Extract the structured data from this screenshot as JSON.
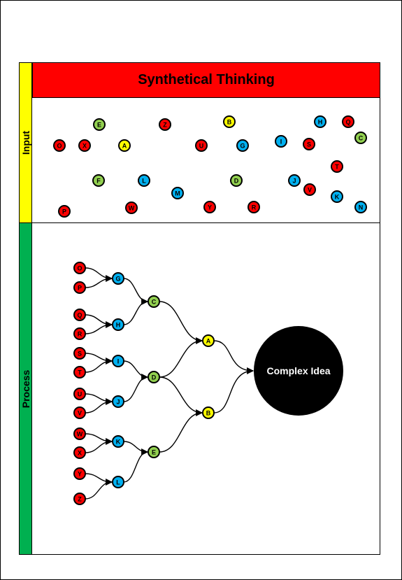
{
  "title": "Synthetical Thinking",
  "sections": {
    "input": "Input",
    "process": "Process"
  },
  "result_label": "Complex Idea",
  "colors": {
    "red": "#ff0000",
    "green": "#92d050",
    "blue": "#00b0f0",
    "yellow": "#ffff00",
    "black": "#000000"
  },
  "input_nodes": [
    {
      "label": "E",
      "color": "green"
    },
    {
      "label": "Z",
      "color": "red"
    },
    {
      "label": "B",
      "color": "yellow"
    },
    {
      "label": "H",
      "color": "blue"
    },
    {
      "label": "Q",
      "color": "red"
    },
    {
      "label": "C",
      "color": "green"
    },
    {
      "label": "O",
      "color": "red"
    },
    {
      "label": "X",
      "color": "red"
    },
    {
      "label": "A",
      "color": "yellow"
    },
    {
      "label": "U",
      "color": "red"
    },
    {
      "label": "G",
      "color": "blue"
    },
    {
      "label": "I",
      "color": "blue"
    },
    {
      "label": "S",
      "color": "red"
    },
    {
      "label": "T",
      "color": "red"
    },
    {
      "label": "F",
      "color": "green"
    },
    {
      "label": "L",
      "color": "blue"
    },
    {
      "label": "M",
      "color": "blue"
    },
    {
      "label": "D",
      "color": "green"
    },
    {
      "label": "J",
      "color": "blue"
    },
    {
      "label": "V",
      "color": "red"
    },
    {
      "label": "K",
      "color": "blue"
    },
    {
      "label": "P",
      "color": "red"
    },
    {
      "label": "W",
      "color": "red"
    },
    {
      "label": "Y",
      "color": "red"
    },
    {
      "label": "R",
      "color": "red"
    },
    {
      "label": "N",
      "color": "blue"
    }
  ],
  "process": {
    "level1": [
      {
        "label": "O",
        "color": "red"
      },
      {
        "label": "P",
        "color": "red"
      },
      {
        "label": "Q",
        "color": "red"
      },
      {
        "label": "R",
        "color": "red"
      },
      {
        "label": "S",
        "color": "red"
      },
      {
        "label": "T",
        "color": "red"
      },
      {
        "label": "U",
        "color": "red"
      },
      {
        "label": "V",
        "color": "red"
      },
      {
        "label": "W",
        "color": "red"
      },
      {
        "label": "X",
        "color": "red"
      },
      {
        "label": "Y",
        "color": "red"
      },
      {
        "label": "Z",
        "color": "red"
      }
    ],
    "level2": [
      {
        "label": "G",
        "color": "blue"
      },
      {
        "label": "H",
        "color": "blue"
      },
      {
        "label": "I",
        "color": "blue"
      },
      {
        "label": "J",
        "color": "blue"
      },
      {
        "label": "K",
        "color": "blue"
      },
      {
        "label": "L",
        "color": "blue"
      }
    ],
    "level3": [
      {
        "label": "C",
        "color": "green"
      },
      {
        "label": "D",
        "color": "green"
      },
      {
        "label": "E",
        "color": "green"
      }
    ],
    "level4": [
      {
        "label": "A",
        "color": "yellow"
      },
      {
        "label": "B",
        "color": "yellow"
      }
    ]
  }
}
